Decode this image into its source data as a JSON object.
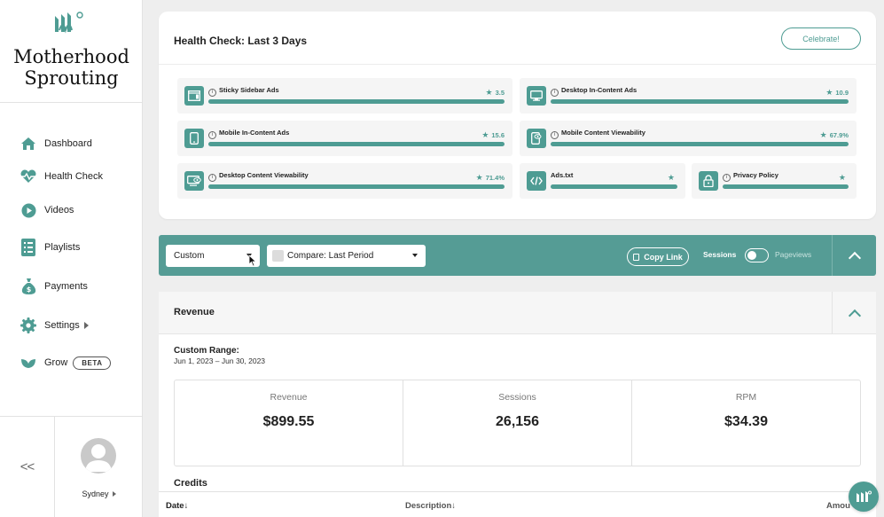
{
  "brand": {
    "name_line1": "Motherhood",
    "name_line2": "Sprouting",
    "accent": "#4e9c93"
  },
  "sidebar": {
    "items": [
      {
        "label": "Dashboard",
        "icon": "home-icon"
      },
      {
        "label": "Health Check",
        "icon": "heartbeat-icon"
      },
      {
        "label": "Videos",
        "icon": "play-icon"
      },
      {
        "label": "Playlists",
        "icon": "list-icon"
      },
      {
        "label": "Payments",
        "icon": "money-bag-icon"
      },
      {
        "label": "Settings",
        "icon": "gear-icon"
      },
      {
        "label": "Grow",
        "icon": "leaf-icon",
        "badge": "BETA"
      }
    ],
    "collapse_label": "<<",
    "user_name": "Sydney"
  },
  "health_check": {
    "title": "Health Check: Last 3 Days",
    "celebrate_label": "Celebrate!",
    "metrics": [
      {
        "name": "Sticky Sidebar Ads",
        "score": "3.5"
      },
      {
        "name": "Desktop In-Content Ads",
        "score": "10.9"
      },
      {
        "name": "Mobile In-Content Ads",
        "score": "15.6"
      },
      {
        "name": "Mobile Content Viewability",
        "score": "67.9%"
      },
      {
        "name": "Desktop Content Viewability",
        "score": "71.4%"
      },
      {
        "name": "Ads.txt",
        "score": ""
      },
      {
        "name": "Privacy Policy",
        "score": ""
      }
    ]
  },
  "filters": {
    "range_select": "Custom",
    "compare_select": "Compare: Last Period",
    "copy_link": "Copy Link",
    "toggle_left": "Sessions",
    "toggle_right": "Pageviews"
  },
  "revenue": {
    "title": "Revenue",
    "range_label": "Custom Range:",
    "range_value": "Jun 1, 2023 – Jun 30, 2023",
    "stats": [
      {
        "label": "Revenue",
        "value": "$899.55"
      },
      {
        "label": "Sessions",
        "value": "26,156"
      },
      {
        "label": "RPM",
        "value": "$34.39"
      }
    ],
    "credits_label": "Credits",
    "columns": [
      "Date↓",
      "Description↓",
      "Amou"
    ]
  }
}
